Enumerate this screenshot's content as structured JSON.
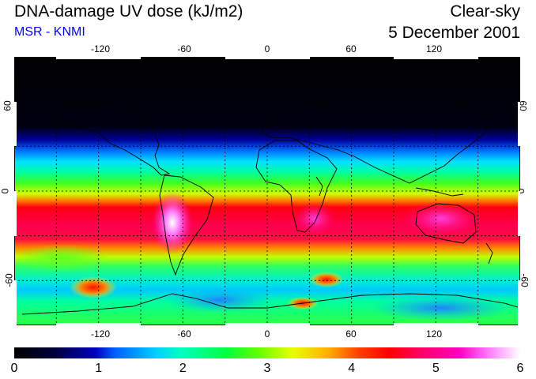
{
  "header": {
    "title": "DNA-damage UV dose (kJ/m2)",
    "source": "MSR - KNMI",
    "condition": "Clear-sky",
    "date": "5 December 2001"
  },
  "map": {
    "lon_ticks": [
      "-120",
      "-60",
      "0",
      "60",
      "120"
    ],
    "lat_ticks": [
      "60",
      "0",
      "-60"
    ],
    "lon_range": [
      -180,
      180
    ],
    "lat_range": [
      -90,
      90
    ],
    "gridlines": "dashed every 30 degrees"
  },
  "colorbar": {
    "labels": [
      "0",
      "1",
      "2",
      "3",
      "4",
      "5",
      "6"
    ],
    "range": [
      0,
      6
    ],
    "units": "kJ/m2"
  }
}
